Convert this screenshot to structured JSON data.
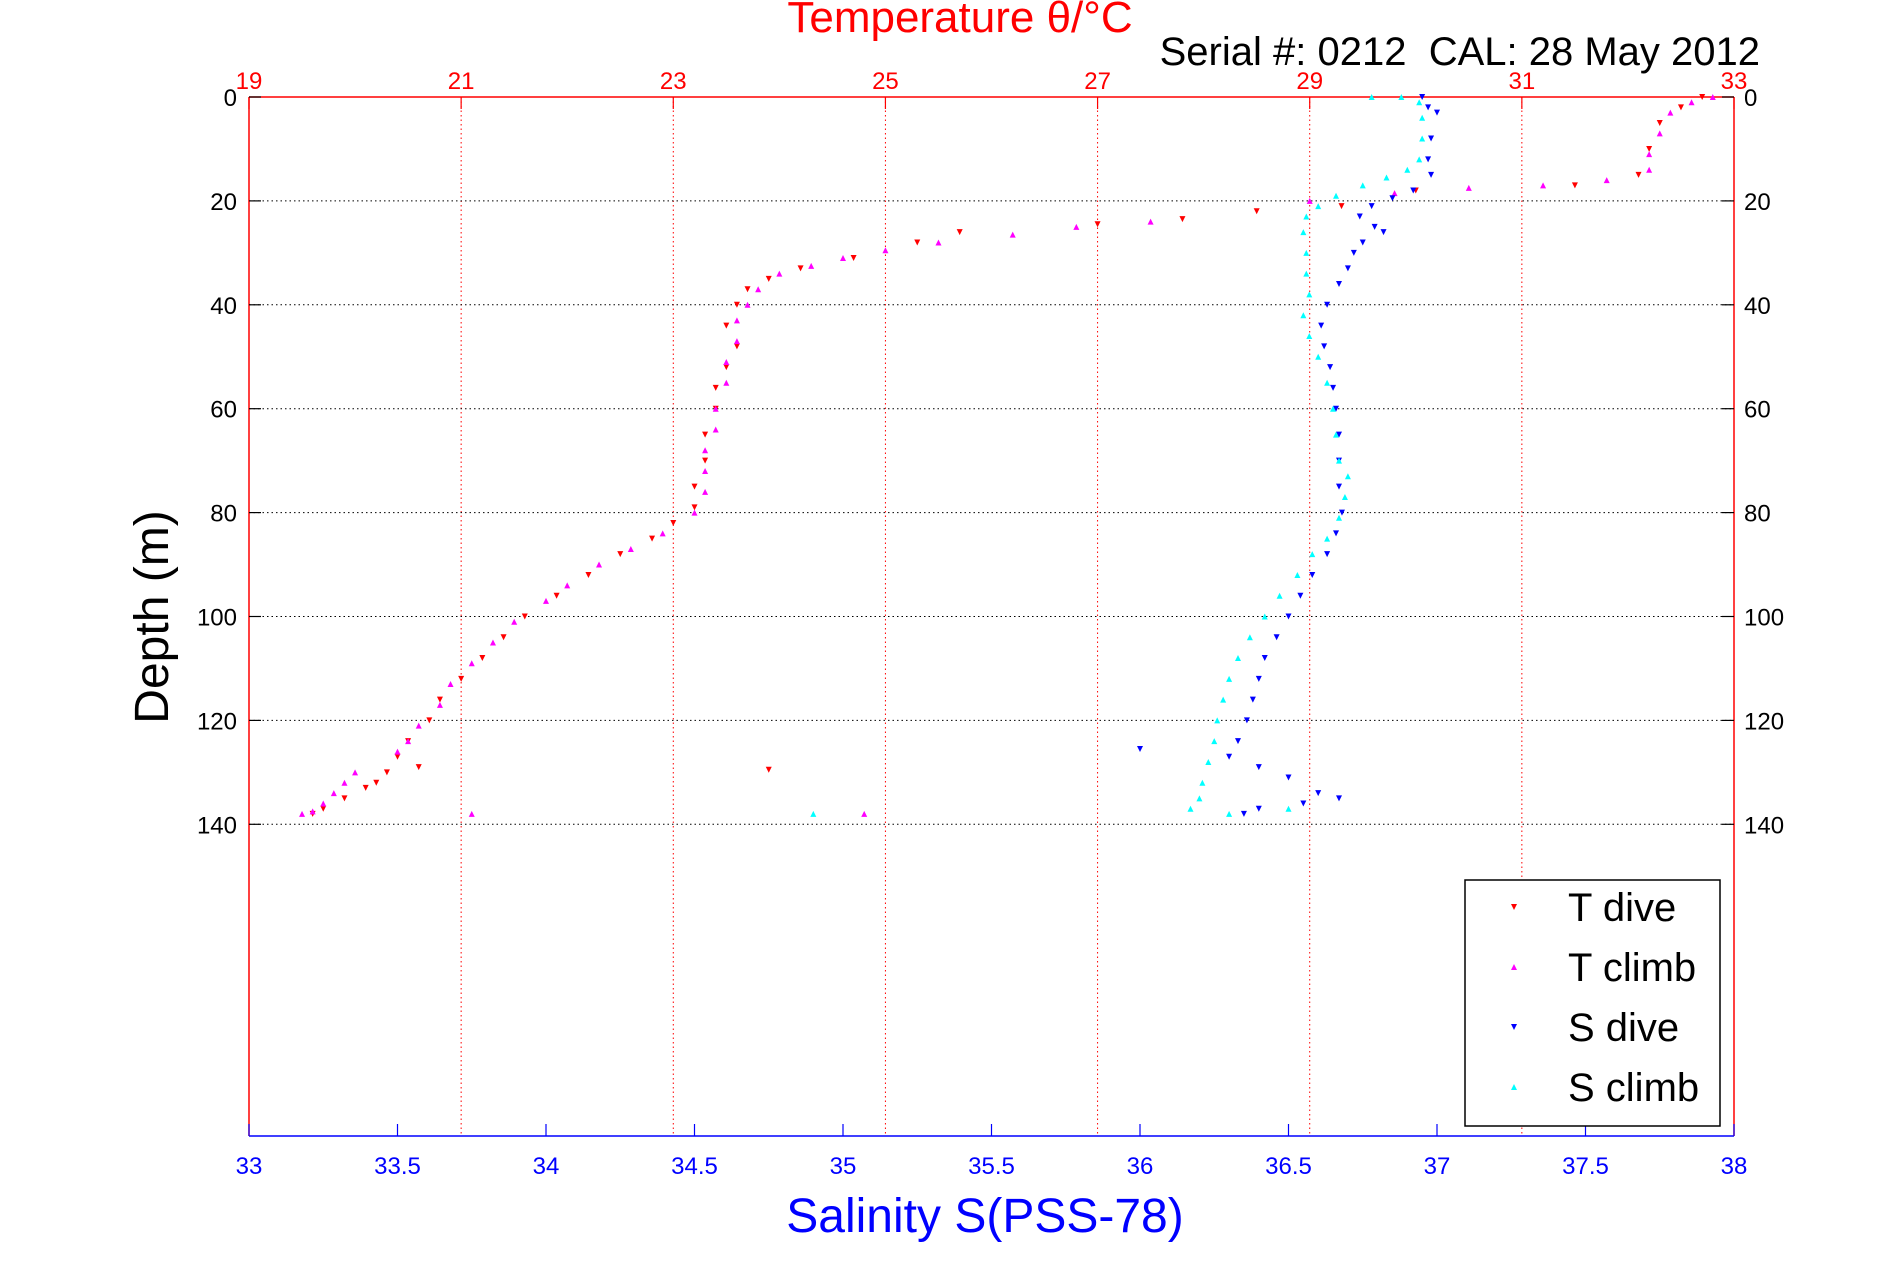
{
  "chart_data": {
    "type": "scatter",
    "title": "Temperature θ/°C",
    "subtitle": "Serial #: 0212  CAL: 28 May 2012",
    "xlabel": "Salinity S(PSS-78)",
    "ylabel": "Depth (m)",
    "x_top": {
      "label": "Temperature θ/°C",
      "range": [
        19,
        33
      ],
      "ticks": [
        19,
        21,
        23,
        25,
        27,
        29,
        31,
        33
      ],
      "color": "#ff0000"
    },
    "x_bottom": {
      "label": "Salinity S(PSS-78)",
      "range": [
        33,
        38
      ],
      "ticks": [
        33,
        33.5,
        34,
        34.5,
        35,
        35.5,
        36,
        36.5,
        37,
        37.5,
        38
      ],
      "color": "#0000ff"
    },
    "y": {
      "range": [
        0,
        200
      ],
      "reversed": true,
      "ticks": [
        0,
        20,
        40,
        60,
        80,
        100,
        120,
        140
      ]
    },
    "grid": true,
    "legend_position": "bottom-right",
    "series": [
      {
        "name": "T dive",
        "axis": "temperature",
        "color": "#ff0000",
        "points": [
          [
            32.7,
            0
          ],
          [
            32.5,
            2
          ],
          [
            32.3,
            5
          ],
          [
            32.2,
            10
          ],
          [
            32.1,
            15
          ],
          [
            31.5,
            17
          ],
          [
            30.0,
            18
          ],
          [
            29.3,
            21
          ],
          [
            28.5,
            22
          ],
          [
            27.8,
            23.5
          ],
          [
            27.0,
            24.5
          ],
          [
            25.7,
            26
          ],
          [
            25.3,
            28
          ],
          [
            24.7,
            31
          ],
          [
            24.2,
            33
          ],
          [
            23.9,
            35
          ],
          [
            23.7,
            37
          ],
          [
            23.6,
            40
          ],
          [
            23.5,
            44
          ],
          [
            23.6,
            48
          ],
          [
            23.5,
            52
          ],
          [
            23.4,
            56
          ],
          [
            23.4,
            60
          ],
          [
            23.3,
            65
          ],
          [
            23.3,
            70
          ],
          [
            23.2,
            75
          ],
          [
            23.2,
            79
          ],
          [
            23.0,
            82
          ],
          [
            22.8,
            85
          ],
          [
            22.5,
            88
          ],
          [
            22.2,
            92
          ],
          [
            21.9,
            96
          ],
          [
            21.6,
            100
          ],
          [
            21.4,
            104
          ],
          [
            21.2,
            108
          ],
          [
            21.0,
            112
          ],
          [
            20.8,
            116
          ],
          [
            20.7,
            120
          ],
          [
            20.5,
            124
          ],
          [
            20.4,
            127
          ],
          [
            20.3,
            130
          ],
          [
            20.1,
            133
          ],
          [
            19.9,
            135
          ],
          [
            19.7,
            137
          ],
          [
            19.6,
            138
          ],
          [
            20.6,
            129
          ],
          [
            20.2,
            132
          ],
          [
            23.9,
            129.5
          ]
        ]
      },
      {
        "name": "T climb",
        "axis": "temperature",
        "color": "#ff00ff",
        "points": [
          [
            32.8,
            0
          ],
          [
            32.6,
            1
          ],
          [
            32.4,
            3
          ],
          [
            32.3,
            7
          ],
          [
            32.2,
            11
          ],
          [
            32.2,
            14
          ],
          [
            31.8,
            16
          ],
          [
            31.2,
            17
          ],
          [
            30.5,
            17.5
          ],
          [
            29.8,
            18.5
          ],
          [
            29.0,
            20
          ],
          [
            27.5,
            24
          ],
          [
            26.8,
            25
          ],
          [
            26.2,
            26.5
          ],
          [
            25.5,
            28
          ],
          [
            25.0,
            29.5
          ],
          [
            24.6,
            31
          ],
          [
            24.3,
            32.5
          ],
          [
            24.0,
            34
          ],
          [
            23.8,
            37
          ],
          [
            23.7,
            40
          ],
          [
            23.6,
            43
          ],
          [
            23.6,
            47
          ],
          [
            23.5,
            51
          ],
          [
            23.5,
            55
          ],
          [
            23.4,
            60
          ],
          [
            23.4,
            64
          ],
          [
            23.3,
            68
          ],
          [
            23.3,
            72
          ],
          [
            23.3,
            76
          ],
          [
            23.2,
            80
          ],
          [
            22.9,
            84
          ],
          [
            22.6,
            87
          ],
          [
            22.3,
            90
          ],
          [
            22.0,
            94
          ],
          [
            21.8,
            97
          ],
          [
            21.5,
            101
          ],
          [
            21.3,
            105
          ],
          [
            21.1,
            109
          ],
          [
            20.9,
            113
          ],
          [
            20.8,
            117
          ],
          [
            20.6,
            121
          ],
          [
            20.5,
            124
          ],
          [
            20.4,
            126
          ],
          [
            20.0,
            130
          ],
          [
            19.9,
            132
          ],
          [
            19.8,
            134
          ],
          [
            19.7,
            136
          ],
          [
            19.6,
            137.5
          ],
          [
            19.5,
            138
          ],
          [
            21.1,
            138
          ],
          [
            24.8,
            138
          ]
        ]
      },
      {
        "name": "S dive",
        "axis": "salinity",
        "color": "#0000ff",
        "points": [
          [
            36.95,
            0
          ],
          [
            36.97,
            2
          ],
          [
            37.0,
            3
          ],
          [
            36.98,
            8
          ],
          [
            36.97,
            12
          ],
          [
            36.98,
            15
          ],
          [
            36.92,
            18
          ],
          [
            36.85,
            19.5
          ],
          [
            36.78,
            21
          ],
          [
            36.74,
            23
          ],
          [
            36.79,
            25
          ],
          [
            36.82,
            26
          ],
          [
            36.75,
            28
          ],
          [
            36.72,
            30
          ],
          [
            36.7,
            33
          ],
          [
            36.67,
            36
          ],
          [
            36.63,
            40
          ],
          [
            36.61,
            44
          ],
          [
            36.62,
            48
          ],
          [
            36.64,
            52
          ],
          [
            36.65,
            56
          ],
          [
            36.66,
            60
          ],
          [
            36.67,
            65
          ],
          [
            36.67,
            70
          ],
          [
            36.67,
            75
          ],
          [
            36.68,
            80
          ],
          [
            36.66,
            84
          ],
          [
            36.63,
            88
          ],
          [
            36.58,
            92
          ],
          [
            36.54,
            96
          ],
          [
            36.5,
            100
          ],
          [
            36.46,
            104
          ],
          [
            36.42,
            108
          ],
          [
            36.4,
            112
          ],
          [
            36.38,
            116
          ],
          [
            36.36,
            120
          ],
          [
            36.33,
            124
          ],
          [
            36.3,
            127
          ],
          [
            36.4,
            129
          ],
          [
            36.5,
            131
          ],
          [
            36.6,
            134
          ],
          [
            36.67,
            135
          ],
          [
            36.55,
            136
          ],
          [
            36.4,
            137
          ],
          [
            36.35,
            138
          ],
          [
            36.0,
            125.5
          ]
        ]
      },
      {
        "name": "S climb",
        "axis": "salinity",
        "color": "#00ffff",
        "points": [
          [
            36.78,
            0
          ],
          [
            36.88,
            0
          ],
          [
            36.94,
            1
          ],
          [
            36.95,
            4
          ],
          [
            36.95,
            8
          ],
          [
            36.94,
            12
          ],
          [
            36.9,
            14
          ],
          [
            36.83,
            15.5
          ],
          [
            36.75,
            17
          ],
          [
            36.66,
            19
          ],
          [
            36.6,
            21
          ],
          [
            36.56,
            23
          ],
          [
            36.55,
            26
          ],
          [
            36.56,
            30
          ],
          [
            36.56,
            34
          ],
          [
            36.57,
            38
          ],
          [
            36.55,
            42
          ],
          [
            36.57,
            46
          ],
          [
            36.6,
            50
          ],
          [
            36.63,
            55
          ],
          [
            36.65,
            60
          ],
          [
            36.66,
            65
          ],
          [
            36.67,
            70
          ],
          [
            36.7,
            73
          ],
          [
            36.69,
            77
          ],
          [
            36.67,
            81
          ],
          [
            36.63,
            85
          ],
          [
            36.58,
            88
          ],
          [
            36.53,
            92
          ],
          [
            36.47,
            96
          ],
          [
            36.42,
            100
          ],
          [
            36.37,
            104
          ],
          [
            36.33,
            108
          ],
          [
            36.3,
            112
          ],
          [
            36.28,
            116
          ],
          [
            36.26,
            120
          ],
          [
            36.25,
            124
          ],
          [
            36.23,
            128
          ],
          [
            36.21,
            132
          ],
          [
            36.2,
            135
          ],
          [
            36.17,
            137
          ],
          [
            36.3,
            138
          ],
          [
            36.5,
            137
          ],
          [
            34.9,
            138
          ]
        ]
      }
    ]
  }
}
